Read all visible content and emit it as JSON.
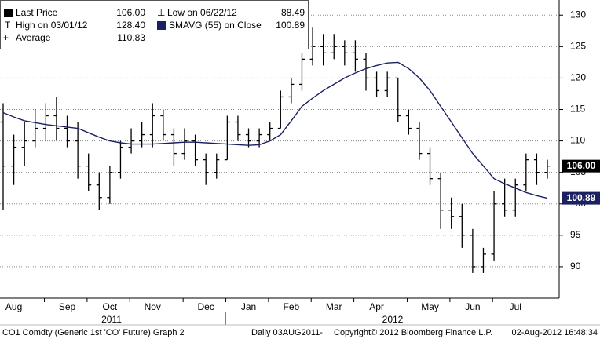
{
  "chart_data": {
    "type": "ohlc",
    "categories": [
      null,
      "Aug",
      null,
      null,
      null,
      null,
      "Sep",
      null,
      null,
      null,
      "Oct",
      null,
      null,
      null,
      "Nov",
      null,
      null,
      null,
      null,
      "Dec",
      null,
      null,
      null,
      "Jan",
      null,
      null,
      null,
      "Feb",
      null,
      null,
      null,
      "Mar",
      null,
      null,
      null,
      "Apr",
      null,
      null,
      null,
      null,
      "May",
      null,
      null,
      null,
      "Jun",
      null,
      null,
      null,
      "Jul",
      null,
      null,
      null
    ],
    "year_labels": [
      "2011",
      "2012"
    ],
    "open": [
      113,
      106,
      109,
      110,
      112,
      114,
      112,
      110,
      106,
      103,
      101,
      105,
      109,
      110,
      111,
      114,
      111,
      108,
      110,
      107,
      105,
      107,
      113,
      111,
      110,
      111,
      112,
      117,
      119,
      123,
      125,
      124,
      125,
      124,
      123,
      120,
      118,
      120,
      114,
      112,
      108,
      104,
      99,
      98,
      95,
      90,
      92,
      100,
      99,
      103,
      107,
      105
    ],
    "high": [
      116,
      111,
      113,
      115,
      116,
      117,
      114,
      113,
      108,
      105,
      106,
      110,
      112,
      113,
      116,
      115,
      112,
      112,
      111,
      108,
      108,
      114,
      114,
      112,
      112,
      113,
      118,
      120,
      124,
      128,
      127,
      127,
      126,
      126,
      124,
      121,
      121,
      120,
      115,
      113,
      109,
      105,
      101,
      100,
      96,
      93,
      102,
      104,
      104,
      108,
      108,
      107
    ],
    "low": [
      99,
      103,
      106,
      109,
      110,
      110,
      109,
      104,
      102,
      99,
      100,
      104,
      108,
      109,
      109,
      110,
      106,
      107,
      106,
      103,
      104,
      107,
      110,
      109,
      109,
      110,
      112,
      116,
      118,
      122,
      122,
      123,
      122,
      121,
      118,
      117,
      117,
      113,
      111,
      107,
      103,
      96,
      96,
      93,
      89,
      89,
      91,
      98,
      98,
      102,
      103,
      104
    ],
    "close": [
      106,
      109,
      110,
      112,
      114,
      112,
      110,
      106,
      103,
      101,
      105,
      109,
      110,
      111,
      114,
      111,
      108,
      110,
      107,
      105,
      107,
      113,
      111,
      110,
      111,
      112,
      117,
      119,
      123,
      125,
      124,
      125,
      124,
      123,
      120,
      118,
      120,
      114,
      112,
      108,
      104,
      99,
      98,
      95,
      90,
      92,
      100,
      99,
      103,
      107,
      105,
      106
    ],
    "color": "#000000",
    "sma": {
      "color": "#1b2160",
      "values": [
        114.5,
        113.8,
        113.2,
        112.9,
        112.6,
        112.4,
        112.2,
        112.0,
        111.3,
        110.6,
        110.0,
        109.7,
        109.5,
        109.5,
        109.5,
        109.6,
        109.7,
        109.8,
        109.8,
        109.7,
        109.6,
        109.5,
        109.4,
        109.3,
        109.4,
        110.0,
        111.0,
        113.2,
        115.5,
        116.8,
        118.0,
        119.0,
        120.0,
        120.8,
        121.5,
        122.0,
        122.4,
        122.5,
        121.5,
        120.0,
        118.0,
        115.5,
        113.0,
        110.5,
        108.0,
        106.0,
        104.0,
        103.2,
        102.5,
        101.8,
        101.3,
        100.89
      ]
    },
    "ylim": [
      85,
      132.4
    ],
    "yticks": [
      90,
      95,
      100,
      105,
      110,
      115,
      120,
      125,
      130
    ],
    "grid": true,
    "legend": {
      "last_price": {
        "label": "Last Price",
        "value": 106,
        "value_label": "106.00"
      },
      "low": {
        "label": "Low on 06/22/12",
        "value": 88.49
      },
      "high": {
        "label": "High on 03/01/12",
        "value": 128.4,
        "value_label": "128.40"
      },
      "sma": {
        "label": "SMAVG (55) on Close",
        "value": 100.89
      },
      "average": {
        "label": "Average",
        "value": 110.83
      }
    },
    "footer": {
      "security": "CO1 Comdty (Generic 1st 'CO' Future) Graph 2",
      "period": "Daily 03AUG2011-",
      "copyright": "Copyright© 2012 Bloomberg Finance L.P.",
      "timestamp": "02-Aug-2012 16:48:34"
    }
  }
}
